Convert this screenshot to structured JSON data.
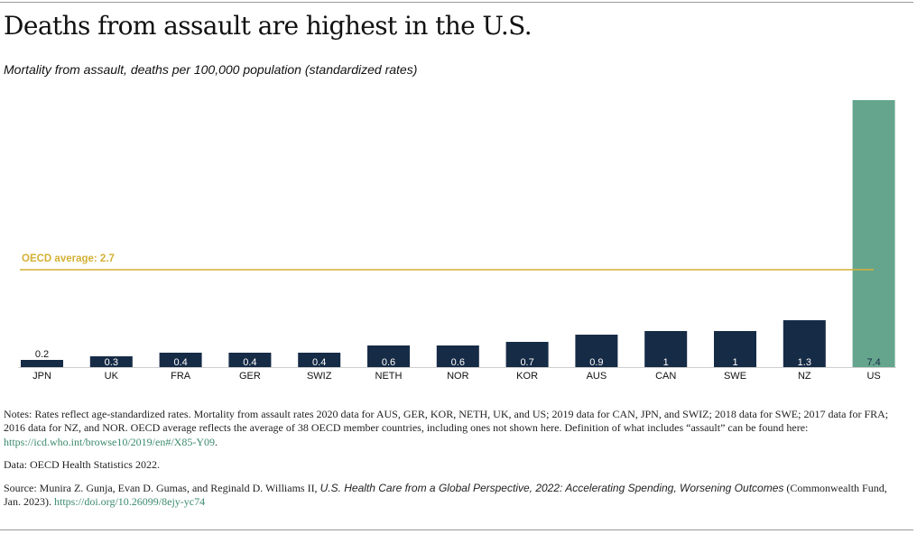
{
  "title": "Deaths from assault are highest in the U.S.",
  "subtitle": "Mortality from assault, deaths per 100,000 population (standardized rates)",
  "colors": {
    "bar": "#162b45",
    "highlight": "#65a58e",
    "average": "#d4b135"
  },
  "chart_data": {
    "type": "bar",
    "categories": [
      "JPN",
      "UK",
      "FRA",
      "GER",
      "SWIZ",
      "NETH",
      "NOR",
      "KOR",
      "AUS",
      "CAN",
      "SWE",
      "NZ",
      "US"
    ],
    "values": [
      0.2,
      0.3,
      0.4,
      0.4,
      0.4,
      0.6,
      0.6,
      0.7,
      0.9,
      1,
      1,
      1.3,
      7.4
    ],
    "value_labels": [
      "0.2",
      "0.3",
      "0.4",
      "0.4",
      "0.4",
      "0.6",
      "0.6",
      "0.7",
      "0.9",
      "1",
      "1",
      "1.3",
      "7.4"
    ],
    "highlight_category": "US",
    "reference_line": {
      "label": "OECD average: 2.7",
      "value": 2.7
    },
    "ylim": [
      0,
      7.4
    ],
    "grid": false
  },
  "notes": {
    "text": "Notes: Rates reflect age-standardized rates. Mortality from assault rates 2020 data for AUS, GER, KOR, NETH, UK, and US; 2019 data for CAN, JPN, and SWIZ; 2018 data for SWE; 2017 data for FRA; 2016 data for NZ, and NOR. OECD average reflects the average of 38 OECD member countries, including ones not shown here. Definition of what includes “assault” can be found here:",
    "link": "https://icd.who.int/browse10/2019/en#/X85-Y09",
    "link_suffix": "."
  },
  "data_source": "Data: OECD Health Statistics 2022.",
  "source": {
    "prefix": "Source: Munira Z. Gunja, Evan D. Gumas, and Reginald D. Williams II,",
    "report_title": "U.S. Health Care from a Global Perspective, 2022: Accelerating Spending, Worsening Outcomes",
    "suffix": "(Commonwealth Fund, Jan. 2023).",
    "link": "https://doi.org/10.26099/8ejy-yc74"
  }
}
